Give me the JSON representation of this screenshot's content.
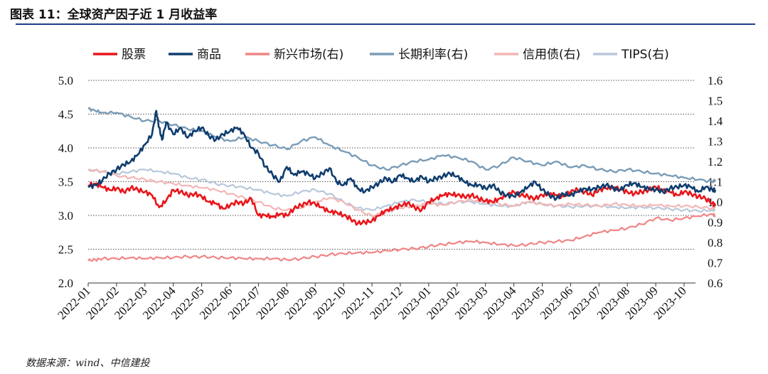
{
  "figure": {
    "title": "图表 11：全球资产因子近 1 月收益率",
    "source": "数据来源：wind、中信建投"
  },
  "chart_data": {
    "type": "line",
    "x_ticks": [
      "2022-01",
      "2022-02",
      "2022-03",
      "2022-04",
      "2022-05",
      "2022-06",
      "2022-07",
      "2022-08",
      "2022-09",
      "2022-10",
      "2022-11",
      "2022-12",
      "2023-01",
      "2023-02",
      "2023-03",
      "2023-04",
      "2023-05",
      "2023-06",
      "2023-07",
      "2023-08",
      "2023-09",
      "2023-10"
    ],
    "y_left": {
      "min": 2.0,
      "max": 5.0,
      "ticks": [
        "2.0",
        "2.5",
        "3.0",
        "3.5",
        "4.0",
        "4.5",
        "5.0"
      ]
    },
    "y_right": {
      "min": 0.6,
      "max": 1.6,
      "ticks": [
        "0.6",
        "0.7",
        "0.8",
        "0.9",
        "1.0",
        "1.1",
        "1.2",
        "1.3",
        "1.4",
        "1.5",
        "1.6"
      ]
    },
    "grid": "horizontal dotted",
    "legend_position": "top",
    "series": [
      {
        "name": "股票",
        "axis": "left",
        "color": "#e8161b",
        "width": 2.6,
        "x": [
          0,
          0.25,
          0.5,
          0.75,
          1.0,
          1.25,
          1.5,
          1.75,
          2.0,
          2.25,
          2.5,
          2.75,
          3.0,
          3.25,
          3.5,
          3.75,
          4.0,
          4.25,
          4.5,
          4.75,
          5.0,
          5.25,
          5.5,
          5.75,
          6.0,
          6.25,
          6.5,
          6.75,
          7.0,
          7.25,
          7.5,
          7.75,
          8.0,
          8.25,
          8.5,
          8.75,
          9.0,
          9.25,
          9.5,
          9.75,
          10.0,
          10.25,
          10.5,
          10.75,
          11.0,
          11.25,
          11.5,
          11.75,
          12.0,
          12.25,
          12.5,
          12.75,
          13.0,
          13.25,
          13.5,
          13.75,
          14.0,
          14.25,
          14.5,
          14.75,
          15.0,
          15.25,
          15.5,
          15.75,
          16.0,
          16.25,
          16.5,
          16.75,
          17.0,
          17.25,
          17.5,
          17.75,
          18.0,
          18.25,
          18.5,
          18.75,
          19.0,
          19.25,
          19.5,
          19.75,
          20.0,
          20.25,
          20.5,
          20.75,
          21.0,
          21.25,
          21.5,
          21.75,
          22.0,
          22.1
        ],
        "y": [
          3.45,
          3.47,
          3.42,
          3.38,
          3.4,
          3.35,
          3.41,
          3.38,
          3.35,
          3.3,
          3.12,
          3.22,
          3.38,
          3.35,
          3.3,
          3.32,
          3.28,
          3.2,
          3.18,
          3.1,
          3.15,
          3.2,
          3.18,
          3.25,
          3.0,
          3.0,
          2.98,
          3.02,
          3.0,
          3.1,
          3.15,
          3.2,
          3.17,
          3.12,
          3.05,
          3.05,
          3.0,
          2.95,
          2.88,
          2.9,
          2.92,
          3.0,
          3.08,
          3.1,
          3.15,
          3.18,
          3.12,
          3.08,
          3.2,
          3.25,
          3.3,
          3.32,
          3.3,
          3.28,
          3.3,
          3.25,
          3.22,
          3.2,
          3.25,
          3.3,
          3.35,
          3.3,
          3.28,
          3.25,
          3.3,
          3.32,
          3.3,
          3.28,
          3.35,
          3.38,
          3.35,
          3.3,
          3.38,
          3.4,
          3.42,
          3.38,
          3.35,
          3.32,
          3.35,
          3.38,
          3.42,
          3.38,
          3.35,
          3.3,
          3.35,
          3.32,
          3.28,
          3.25,
          3.18,
          3.15
        ]
      },
      {
        "name": "商品",
        "axis": "left",
        "color": "#0f3d6e",
        "width": 2.6,
        "x": [
          0,
          0.25,
          0.5,
          0.75,
          1.0,
          1.25,
          1.5,
          1.75,
          2.0,
          2.25,
          2.4,
          2.5,
          2.6,
          2.75,
          3.0,
          3.25,
          3.5,
          3.75,
          4.0,
          4.25,
          4.5,
          4.75,
          5.0,
          5.25,
          5.5,
          5.75,
          6.0,
          6.25,
          6.5,
          6.75,
          7.0,
          7.25,
          7.5,
          7.75,
          8.0,
          8.25,
          8.5,
          8.75,
          9.0,
          9.25,
          9.5,
          9.75,
          10.0,
          10.25,
          10.5,
          10.75,
          11.0,
          11.25,
          11.5,
          11.75,
          12.0,
          12.25,
          12.5,
          12.75,
          13.0,
          13.25,
          13.5,
          13.75,
          14.0,
          14.25,
          14.5,
          14.75,
          15.0,
          15.25,
          15.5,
          15.75,
          16.0,
          16.25,
          16.5,
          16.75,
          17.0,
          17.25,
          17.5,
          17.75,
          18.0,
          18.25,
          18.5,
          18.75,
          19.0,
          19.25,
          19.5,
          19.75,
          20.0,
          20.25,
          20.5,
          20.75,
          21.0,
          21.25,
          21.5,
          21.75,
          22.0,
          22.1
        ],
        "y": [
          3.42,
          3.45,
          3.52,
          3.62,
          3.68,
          3.75,
          3.8,
          3.9,
          4.05,
          4.2,
          4.55,
          4.3,
          4.12,
          4.38,
          4.2,
          4.3,
          4.15,
          4.25,
          4.3,
          4.18,
          4.12,
          4.2,
          4.25,
          4.3,
          4.2,
          4.0,
          3.92,
          3.72,
          3.6,
          3.5,
          3.72,
          3.6,
          3.65,
          3.62,
          3.55,
          3.62,
          3.7,
          3.5,
          3.45,
          3.55,
          3.4,
          3.35,
          3.42,
          3.48,
          3.55,
          3.5,
          3.6,
          3.55,
          3.5,
          3.58,
          3.5,
          3.55,
          3.58,
          3.62,
          3.58,
          3.5,
          3.45,
          3.45,
          3.4,
          3.45,
          3.35,
          3.3,
          3.28,
          3.35,
          3.42,
          3.5,
          3.38,
          3.3,
          3.25,
          3.32,
          3.3,
          3.35,
          3.4,
          3.38,
          3.42,
          3.45,
          3.4,
          3.38,
          3.45,
          3.48,
          3.42,
          3.4,
          3.38,
          3.35,
          3.4,
          3.42,
          3.45,
          3.42,
          3.35,
          3.42,
          3.38,
          3.38
        ]
      },
      {
        "name": "新兴市场(右)",
        "axis": "right",
        "color": "#f08585",
        "width": 2.2,
        "x": [
          0,
          0.25,
          0.5,
          1.0,
          1.5,
          2.0,
          2.5,
          3.0,
          3.5,
          4.0,
          4.5,
          5.0,
          5.5,
          6.0,
          6.5,
          7.0,
          7.5,
          8.0,
          8.5,
          9.0,
          9.5,
          10.0,
          10.5,
          11.0,
          11.5,
          12.0,
          12.5,
          13.0,
          13.5,
          14.0,
          14.5,
          15.0,
          15.5,
          16.0,
          16.5,
          17.0,
          17.5,
          18.0,
          18.5,
          19.0,
          19.5,
          20.0,
          20.5,
          21.0,
          21.5,
          22.0,
          22.1
        ],
        "y": [
          0.71,
          0.715,
          0.72,
          0.72,
          0.725,
          0.72,
          0.725,
          0.725,
          0.73,
          0.73,
          0.725,
          0.725,
          0.72,
          0.72,
          0.72,
          0.715,
          0.72,
          0.73,
          0.74,
          0.745,
          0.75,
          0.75,
          0.76,
          0.765,
          0.77,
          0.78,
          0.79,
          0.8,
          0.805,
          0.8,
          0.79,
          0.785,
          0.79,
          0.8,
          0.805,
          0.81,
          0.83,
          0.85,
          0.86,
          0.87,
          0.89,
          0.92,
          0.91,
          0.92,
          0.93,
          0.94,
          0.93
        ]
      },
      {
        "name": "长期利率(右)",
        "axis": "right",
        "color": "#7b9cb6",
        "width": 2.4,
        "x": [
          0,
          0.25,
          0.5,
          1.0,
          1.5,
          2.0,
          2.5,
          3.0,
          3.5,
          4.0,
          4.5,
          5.0,
          5.5,
          6.0,
          6.5,
          7.0,
          7.5,
          8.0,
          8.5,
          9.0,
          9.5,
          10.0,
          10.5,
          11.0,
          11.5,
          12.0,
          12.5,
          13.0,
          13.5,
          14.0,
          14.5,
          15.0,
          15.5,
          16.0,
          16.5,
          17.0,
          17.5,
          18.0,
          18.5,
          19.0,
          19.5,
          20.0,
          20.5,
          21.0,
          21.5,
          22.0,
          22.1
        ],
        "y": [
          1.46,
          1.45,
          1.44,
          1.44,
          1.42,
          1.4,
          1.4,
          1.38,
          1.36,
          1.35,
          1.32,
          1.3,
          1.32,
          1.3,
          1.28,
          1.26,
          1.3,
          1.32,
          1.28,
          1.25,
          1.22,
          1.18,
          1.16,
          1.18,
          1.2,
          1.21,
          1.23,
          1.22,
          1.2,
          1.16,
          1.18,
          1.22,
          1.2,
          1.18,
          1.2,
          1.17,
          1.18,
          1.16,
          1.15,
          1.16,
          1.15,
          1.14,
          1.13,
          1.12,
          1.11,
          1.1,
          1.11
        ]
      },
      {
        "name": "信用债(右)",
        "axis": "right",
        "color": "#f4b6b6",
        "width": 2.2,
        "x": [
          0,
          0.5,
          1.0,
          1.5,
          2.0,
          2.5,
          3.0,
          3.5,
          4.0,
          4.5,
          5.0,
          5.5,
          6.0,
          6.5,
          7.0,
          7.5,
          8.0,
          8.5,
          9.0,
          9.5,
          10.0,
          10.5,
          11.0,
          11.5,
          12.0,
          12.5,
          13.0,
          13.5,
          14.0,
          14.5,
          15.0,
          15.5,
          16.0,
          16.5,
          17.0,
          17.5,
          18.0,
          18.5,
          19.0,
          19.5,
          20.0,
          20.5,
          21.0,
          21.5,
          22.0,
          22.1
        ],
        "y": [
          1.16,
          1.15,
          1.13,
          1.12,
          1.11,
          1.1,
          1.09,
          1.08,
          1.07,
          1.06,
          1.04,
          1.02,
          1.0,
          0.97,
          0.96,
          0.97,
          1.0,
          1.02,
          1.0,
          0.96,
          0.93,
          0.95,
          0.97,
          0.98,
          0.99,
          0.985,
          1.0,
          1.01,
          1.0,
          0.99,
          0.98,
          1.0,
          0.99,
          0.98,
          0.99,
          0.985,
          0.98,
          0.99,
          0.985,
          0.98,
          0.985,
          0.98,
          0.98,
          0.975,
          0.97,
          0.97
        ]
      },
      {
        "name": "TIPS(右)",
        "axis": "right",
        "color": "#b8c8da",
        "width": 2.2,
        "x": [
          0,
          0.5,
          1.0,
          1.5,
          2.0,
          2.5,
          3.0,
          3.5,
          4.0,
          4.5,
          5.0,
          5.5,
          6.0,
          6.5,
          7.0,
          7.5,
          8.0,
          8.5,
          9.0,
          9.5,
          10.0,
          10.5,
          11.0,
          11.5,
          12.0,
          12.5,
          13.0,
          13.5,
          14.0,
          14.5,
          15.0,
          15.5,
          16.0,
          16.5,
          17.0,
          17.5,
          18.0,
          18.5,
          19.0,
          19.5,
          20.0,
          20.5,
          21.0,
          21.5,
          22.0,
          22.1
        ],
        "y": [
          1.16,
          1.15,
          1.14,
          1.15,
          1.16,
          1.15,
          1.14,
          1.12,
          1.11,
          1.09,
          1.08,
          1.07,
          1.06,
          1.04,
          1.03,
          1.05,
          1.06,
          1.04,
          1.0,
          0.97,
          0.96,
          0.98,
          1.0,
          1.01,
          1.0,
          0.99,
          1.0,
          1.0,
          0.99,
          0.98,
          0.98,
          1.0,
          0.99,
          0.98,
          0.975,
          0.98,
          0.98,
          0.975,
          0.97,
          0.975,
          0.97,
          0.965,
          0.96,
          0.955,
          0.96,
          0.96
        ]
      }
    ]
  }
}
